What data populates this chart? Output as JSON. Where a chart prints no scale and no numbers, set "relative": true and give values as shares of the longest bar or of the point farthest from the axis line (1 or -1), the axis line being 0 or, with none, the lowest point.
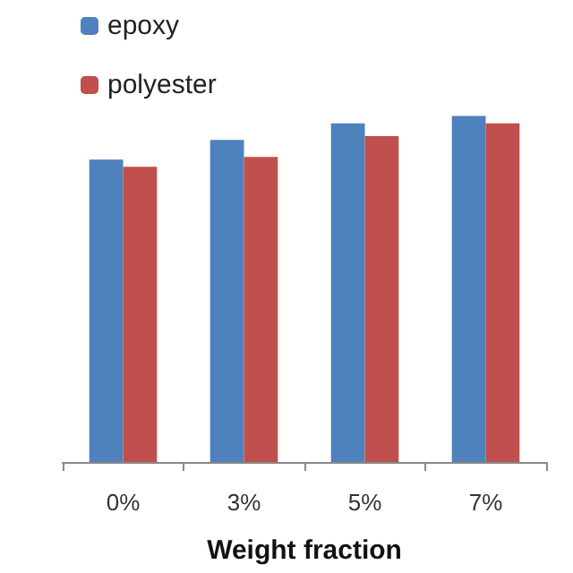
{
  "chart_data": {
    "type": "bar",
    "xlabel": "Weight fraction",
    "categories": [
      "0%",
      "3%",
      "5%",
      "7%"
    ],
    "relative": true,
    "legend": "top left",
    "series": [
      {
        "name": "epoxy",
        "color": "#4f81bd",
        "values": [
          0.874,
          0.931,
          0.979,
          1
        ]
      },
      {
        "name": "polyester",
        "color": "#c0504d",
        "values": [
          0.853,
          0.882,
          0.942,
          0.979
        ]
      }
    ]
  }
}
